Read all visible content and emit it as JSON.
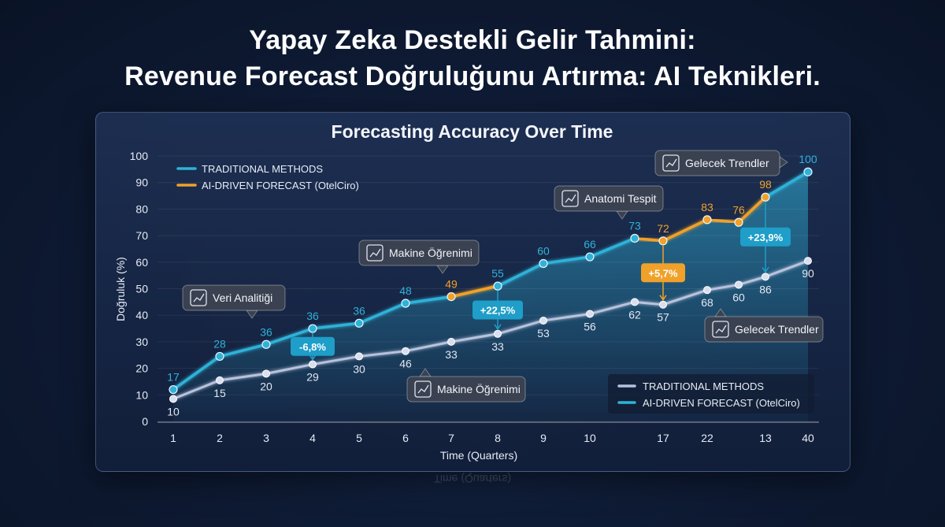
{
  "title": {
    "line1": "Yapay Zeka Destekli Gelir Tahmini:",
    "line2": "Revenue Forecast Doğruluğunu Artırma: AI Teknikleri."
  },
  "chart_data": {
    "type": "line",
    "title": "Forecasting Accuracy Over Time",
    "xlabel": "Time (Quarters)",
    "ylabel": "Doğruluk (%)",
    "ylim": [
      0,
      100
    ],
    "yticks": [
      0,
      10,
      20,
      30,
      40,
      50,
      60,
      70,
      80,
      90,
      100
    ],
    "categories": [
      "1",
      "2",
      "3",
      "4",
      "5",
      "6",
      "7",
      "8",
      "9",
      "10",
      "",
      "17",
      "22",
      "",
      "13",
      "40"
    ],
    "series": [
      {
        "name": "AI-DRIVEN FORECAST (OtelCiro)",
        "color": "#2fb2d8",
        "highlight_color": "#f0a12a",
        "values": [
          12,
          24.5,
          29,
          35,
          37,
          44.5,
          47,
          51,
          59.5,
          62,
          69,
          68,
          76,
          75,
          84.5,
          94
        ],
        "labels": [
          "17",
          "28",
          "36",
          "36",
          "36",
          "48",
          "49",
          "55",
          "60",
          "66",
          "73",
          "72",
          "83",
          "76",
          "98",
          "100"
        ]
      },
      {
        "name": "TRADITIONAL METHODS",
        "color": "#b8c2dc",
        "values": [
          8.5,
          15.5,
          18,
          21.5,
          24.5,
          26.5,
          30,
          33,
          38,
          40.5,
          45,
          44,
          49.5,
          51.5,
          54.5,
          60.5
        ],
        "labels": [
          "10",
          "15",
          "20",
          "29",
          "30",
          "46",
          "33",
          "33",
          "53",
          "56",
          "62",
          "57",
          "68",
          "60",
          "86",
          "90"
        ]
      }
    ],
    "legend_top": [
      {
        "label": "TRADITIONAL METHODS",
        "color": "#2fb2d8"
      },
      {
        "label": "AI-DRIVEN FORECAST (OtelCiro)",
        "color": "#f0a12a"
      }
    ],
    "legend_bottom": [
      {
        "label": "TRADITIONAL METHODS",
        "color": "#b8c2dc"
      },
      {
        "label": "AI-DRIVEN FORECAST (OtelCiro)",
        "color": "#2fb2d8"
      }
    ],
    "deltas": [
      {
        "text": "-6,8%",
        "index": 3,
        "color": "#1e9ec8"
      },
      {
        "text": "+22,5%",
        "index": 7,
        "color": "#1e9ec8"
      },
      {
        "text": "+5,7%",
        "index": 11,
        "color": "#f0a12a"
      },
      {
        "text": "+23,9%",
        "index": 14,
        "color": "#1e9ec8"
      }
    ],
    "callouts": [
      {
        "text": "Veri Analitiği",
        "icon": "chart-board-icon"
      },
      {
        "text": "Makine Öğrenimi",
        "icon": "brain-icon"
      },
      {
        "text": "Makine Öğrenimi",
        "icon": "brain-icon"
      },
      {
        "text": "Anatomi Tespit",
        "icon": "magnifier-chart-icon"
      },
      {
        "text": "Gelecek Trendler",
        "icon": "growth-chart-icon"
      },
      {
        "text": "Gelecek Trendler",
        "icon": "growth-chart-icon"
      }
    ]
  },
  "reflection": "Time (Quarters)"
}
